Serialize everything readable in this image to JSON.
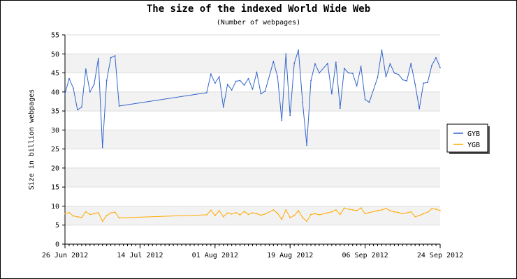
{
  "chart_data": {
    "type": "line",
    "title": "The size of the indexed World Wide Web",
    "subtitle": "(Number of webpages)",
    "xlabel": "",
    "ylabel": "Size in billion webpages",
    "ylim": [
      0,
      55
    ],
    "yticks": [
      "0",
      "5",
      "10",
      "15",
      "20",
      "25",
      "30",
      "35",
      "40",
      "45",
      "50",
      "55"
    ],
    "xlim": [
      "2012-06-26",
      "2012-09-24"
    ],
    "xticks": [
      {
        "date": "2012-06-26",
        "label": "26 Jun 2012"
      },
      {
        "date": "2012-07-14",
        "label": "14 Jul 2012"
      },
      {
        "date": "2012-08-01",
        "label": "01 Aug 2012"
      },
      {
        "date": "2012-08-19",
        "label": "19 Aug 2012"
      },
      {
        "date": "2012-09-06",
        "label": "06 Sep 2012"
      },
      {
        "date": "2012-09-24",
        "label": "24 Sep 2012"
      }
    ],
    "grid": "horizontal bands",
    "legend": "right",
    "series": [
      {
        "name": "GYB",
        "color": "#3366cc",
        "points": [
          [
            "2012-06-26",
            39.5
          ],
          [
            "2012-06-27",
            43.5
          ],
          [
            "2012-06-28",
            41.0
          ],
          [
            "2012-06-29",
            35.3
          ],
          [
            "2012-06-30",
            36.0
          ],
          [
            "2012-07-01",
            46.0
          ],
          [
            "2012-07-02",
            40.0
          ],
          [
            "2012-07-03",
            42.0
          ],
          [
            "2012-07-04",
            48.8
          ],
          [
            "2012-07-05",
            25.4
          ],
          [
            "2012-07-06",
            43.0
          ],
          [
            "2012-07-07",
            49.0
          ],
          [
            "2012-07-08",
            49.5
          ],
          [
            "2012-07-09",
            36.3
          ],
          [
            "2012-07-30",
            39.8
          ],
          [
            "2012-07-31",
            44.7
          ],
          [
            "2012-08-01",
            42.3
          ],
          [
            "2012-08-02",
            44.0
          ],
          [
            "2012-08-03",
            36.0
          ],
          [
            "2012-08-04",
            42.0
          ],
          [
            "2012-08-05",
            40.5
          ],
          [
            "2012-08-06",
            42.8
          ],
          [
            "2012-08-07",
            43.0
          ],
          [
            "2012-08-08",
            41.8
          ],
          [
            "2012-08-09",
            43.5
          ],
          [
            "2012-08-10",
            40.7
          ],
          [
            "2012-08-11",
            45.2
          ],
          [
            "2012-08-12",
            39.5
          ],
          [
            "2012-08-13",
            40.2
          ],
          [
            "2012-08-15",
            48.0
          ],
          [
            "2012-08-16",
            44.0
          ],
          [
            "2012-08-17",
            32.5
          ],
          [
            "2012-08-18",
            50.0
          ],
          [
            "2012-08-19",
            33.8
          ],
          [
            "2012-08-20",
            47.5
          ],
          [
            "2012-08-21",
            51.0
          ],
          [
            "2012-08-22",
            37.3
          ],
          [
            "2012-08-23",
            26.0
          ],
          [
            "2012-08-24",
            43.0
          ],
          [
            "2012-08-25",
            47.4
          ],
          [
            "2012-08-26",
            45.0
          ],
          [
            "2012-08-28",
            47.5
          ],
          [
            "2012-08-29",
            39.5
          ],
          [
            "2012-08-30",
            47.8
          ],
          [
            "2012-08-31",
            35.7
          ],
          [
            "2012-09-01",
            46.2
          ],
          [
            "2012-09-02",
            45.0
          ],
          [
            "2012-09-03",
            44.9
          ],
          [
            "2012-09-04",
            41.6
          ],
          [
            "2012-09-05",
            46.7
          ],
          [
            "2012-09-06",
            38.0
          ],
          [
            "2012-09-07",
            37.3
          ],
          [
            "2012-09-09",
            43.8
          ],
          [
            "2012-09-10",
            51.0
          ],
          [
            "2012-09-11",
            44.0
          ],
          [
            "2012-09-12",
            47.4
          ],
          [
            "2012-09-13",
            45.0
          ],
          [
            "2012-09-14",
            44.6
          ],
          [
            "2012-09-15",
            43.2
          ],
          [
            "2012-09-16",
            42.9
          ],
          [
            "2012-09-17",
            47.5
          ],
          [
            "2012-09-18",
            42.0
          ],
          [
            "2012-09-19",
            35.6
          ],
          [
            "2012-09-20",
            42.3
          ],
          [
            "2012-09-21",
            42.5
          ],
          [
            "2012-09-22",
            47.0
          ],
          [
            "2012-09-23",
            49.0
          ],
          [
            "2012-09-24",
            46.4
          ]
        ]
      },
      {
        "name": "YGB",
        "color": "#ffaa00",
        "points": [
          [
            "2012-06-26",
            8.0
          ],
          [
            "2012-06-27",
            8.3
          ],
          [
            "2012-06-28",
            7.4
          ],
          [
            "2012-06-29",
            7.2
          ],
          [
            "2012-06-30",
            7.0
          ],
          [
            "2012-07-01",
            8.5
          ],
          [
            "2012-07-02",
            7.8
          ],
          [
            "2012-07-03",
            8.0
          ],
          [
            "2012-07-04",
            8.3
          ],
          [
            "2012-07-05",
            6.0
          ],
          [
            "2012-07-06",
            7.5
          ],
          [
            "2012-07-07",
            8.2
          ],
          [
            "2012-07-08",
            8.4
          ],
          [
            "2012-07-09",
            6.9
          ],
          [
            "2012-07-30",
            7.7
          ],
          [
            "2012-07-31",
            8.9
          ],
          [
            "2012-08-01",
            7.5
          ],
          [
            "2012-08-02",
            8.8
          ],
          [
            "2012-08-03",
            7.2
          ],
          [
            "2012-08-04",
            8.2
          ],
          [
            "2012-08-05",
            7.9
          ],
          [
            "2012-08-06",
            8.3
          ],
          [
            "2012-08-07",
            7.7
          ],
          [
            "2012-08-08",
            8.6
          ],
          [
            "2012-08-09",
            7.8
          ],
          [
            "2012-08-10",
            8.2
          ],
          [
            "2012-08-11",
            8.0
          ],
          [
            "2012-08-12",
            7.6
          ],
          [
            "2012-08-13",
            7.9
          ],
          [
            "2012-08-15",
            9.0
          ],
          [
            "2012-08-16",
            8.1
          ],
          [
            "2012-08-17",
            6.5
          ],
          [
            "2012-08-18",
            9.0
          ],
          [
            "2012-08-19",
            7.0
          ],
          [
            "2012-08-20",
            7.5
          ],
          [
            "2012-08-21",
            8.8
          ],
          [
            "2012-08-22",
            7.0
          ],
          [
            "2012-08-23",
            6.0
          ],
          [
            "2012-08-24",
            7.8
          ],
          [
            "2012-08-25",
            8.0
          ],
          [
            "2012-08-26",
            7.7
          ],
          [
            "2012-08-28",
            8.2
          ],
          [
            "2012-08-29",
            8.5
          ],
          [
            "2012-08-30",
            9.0
          ],
          [
            "2012-08-31",
            7.8
          ],
          [
            "2012-09-01",
            9.5
          ],
          [
            "2012-09-02",
            9.2
          ],
          [
            "2012-09-03",
            9.0
          ],
          [
            "2012-09-04",
            8.8
          ],
          [
            "2012-09-05",
            9.5
          ],
          [
            "2012-09-06",
            8.0
          ],
          [
            "2012-09-07",
            8.3
          ],
          [
            "2012-09-09",
            8.8
          ],
          [
            "2012-09-10",
            9.0
          ],
          [
            "2012-09-11",
            9.4
          ],
          [
            "2012-09-12",
            8.8
          ],
          [
            "2012-09-13",
            8.5
          ],
          [
            "2012-09-14",
            8.3
          ],
          [
            "2012-09-15",
            8.0
          ],
          [
            "2012-09-16",
            8.2
          ],
          [
            "2012-09-17",
            8.5
          ],
          [
            "2012-09-18",
            7.2
          ],
          [
            "2012-09-19",
            7.5
          ],
          [
            "2012-09-20",
            8.0
          ],
          [
            "2012-09-21",
            8.4
          ],
          [
            "2012-09-22",
            9.3
          ],
          [
            "2012-09-23",
            9.2
          ],
          [
            "2012-09-24",
            8.8
          ]
        ]
      }
    ]
  }
}
